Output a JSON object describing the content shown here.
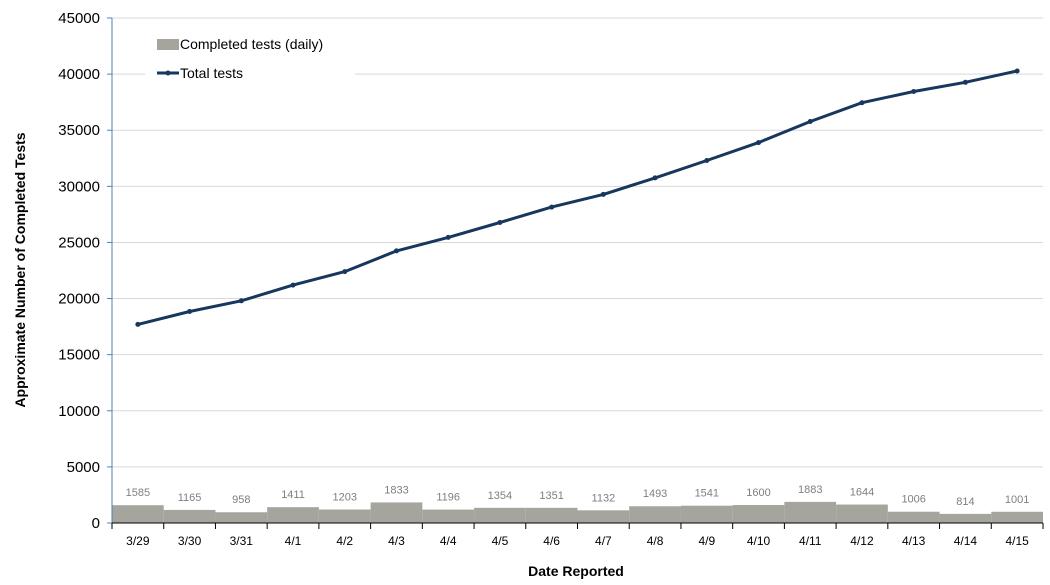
{
  "chart_data": {
    "type": "bar+line",
    "categories": [
      "3/29",
      "3/30",
      "3/31",
      "4/1",
      "4/2",
      "4/3",
      "4/4",
      "4/5",
      "4/6",
      "4/7",
      "4/8",
      "4/9",
      "4/10",
      "4/11",
      "4/12",
      "4/13",
      "4/14",
      "4/15"
    ],
    "series": [
      {
        "name": "Completed tests (daily)",
        "type": "bar",
        "color": "#a6a59d",
        "values": [
          1585,
          1165,
          958,
          1411,
          1203,
          1833,
          1196,
          1354,
          1351,
          1132,
          1493,
          1541,
          1600,
          1883,
          1644,
          1006,
          814,
          1001
        ],
        "data_labels": [
          "1585",
          "1165",
          "958",
          "1411",
          "1203",
          "1833",
          "1196",
          "1354",
          "1351",
          "1132",
          "1493",
          "1541",
          "1600",
          "1883",
          "1644",
          "1006",
          "814",
          "1001"
        ]
      },
      {
        "name": "Total tests",
        "type": "line",
        "color": "#17375e",
        "values": [
          17700,
          18850,
          19800,
          21200,
          22400,
          24250,
          25450,
          26780,
          28150,
          29280,
          30750,
          32300,
          33900,
          35780,
          37450,
          38450,
          39270,
          40280
        ]
      }
    ],
    "xlabel": "Date Reported",
    "ylabel": "Approximate Number of Completed Tests",
    "ylim": [
      0,
      45000
    ],
    "yticks": [
      "0",
      "5000",
      "10000",
      "15000",
      "20000",
      "25000",
      "30000",
      "35000",
      "40000",
      "45000"
    ],
    "ytick_values": [
      0,
      5000,
      10000,
      15000,
      20000,
      25000,
      30000,
      35000,
      40000,
      45000
    ],
    "grid": "horizontal",
    "legend": "top-left"
  }
}
